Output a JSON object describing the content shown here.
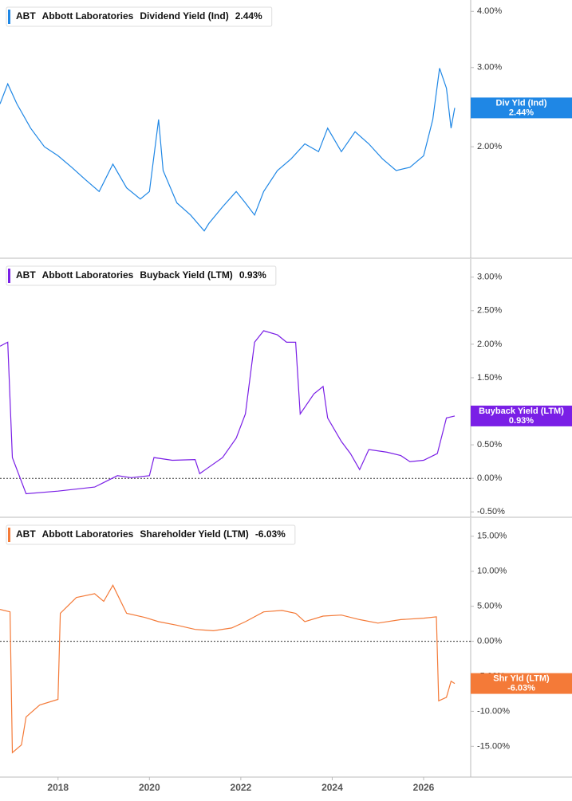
{
  "chart_data": [
    {
      "type": "line",
      "log": true,
      "legend": {
        "ticker": "ABT",
        "company": "Abbott Laboratories",
        "value": "2.44%"
      },
      "badge": {
        "label": "Div Yld (Ind)",
        "value": "2.44%"
      },
      "x": [
        2016.73,
        2016.9,
        2017.1,
        2017.4,
        2017.7,
        2018.0,
        2018.3,
        2018.6,
        2018.9,
        2019.2,
        2019.5,
        2019.8,
        2020.0,
        2020.2,
        2020.3,
        2020.6,
        2020.9,
        2021.2,
        2021.3,
        2021.6,
        2021.9,
        2022.1,
        2022.3,
        2022.5,
        2022.8,
        2023.1,
        2023.4,
        2023.7,
        2023.9,
        2024.2,
        2024.5,
        2024.8,
        2025.1,
        2025.4,
        2025.7,
        2026.0,
        2026.2,
        2026.35,
        2026.5,
        2026.6,
        2026.68
      ],
      "series": [
        {
          "name": "Dividend Yield (Ind)",
          "color": "#1f87e5",
          "values": [
            2.49,
            2.76,
            2.49,
            2.2,
            2.0,
            1.91,
            1.8,
            1.69,
            1.59,
            1.83,
            1.62,
            1.53,
            1.59,
            2.3,
            1.77,
            1.5,
            1.41,
            1.3,
            1.35,
            1.47,
            1.59,
            1.5,
            1.41,
            1.59,
            1.77,
            1.88,
            2.03,
            1.95,
            2.2,
            1.95,
            2.16,
            2.03,
            1.88,
            1.77,
            1.8,
            1.91,
            2.3,
            2.99,
            2.7,
            2.2,
            2.44
          ]
        }
      ],
      "xlim": [
        2016.73,
        2027.03
      ],
      "ylim": [
        1.13,
        4.24
      ],
      "yticks": [
        {
          "value": 2,
          "label": "2.00%"
        },
        {
          "value": 3,
          "label": "3.00%"
        },
        {
          "value": 4,
          "label": "4.00%"
        }
      ]
    },
    {
      "type": "line",
      "log": false,
      "zero_line": true,
      "legend": {
        "ticker": "ABT",
        "company": "Abbott Laboratories",
        "value": "0.93%"
      },
      "badge": {
        "label": "Buyback Yield (LTM)",
        "value": "0.93%"
      },
      "x": [
        2016.73,
        2016.9,
        2017.0,
        2017.3,
        2018.0,
        2018.8,
        2019.3,
        2019.6,
        2020.0,
        2020.1,
        2020.5,
        2021.0,
        2021.1,
        2021.6,
        2021.9,
        2022.1,
        2022.3,
        2022.5,
        2022.8,
        2023.0,
        2023.2,
        2023.3,
        2023.6,
        2023.8,
        2023.9,
        2024.2,
        2024.4,
        2024.6,
        2024.8,
        2025.2,
        2025.5,
        2025.7,
        2026.0,
        2026.3,
        2026.5,
        2026.68
      ],
      "series": [
        {
          "name": "Buyback Yield (LTM)",
          "color": "#7a1fe6",
          "values": [
            1.97,
            2.03,
            0.31,
            -0.23,
            -0.19,
            -0.13,
            0.04,
            0.01,
            0.04,
            0.31,
            0.27,
            0.28,
            0.07,
            0.31,
            0.6,
            0.96,
            2.03,
            2.2,
            2.14,
            2.03,
            2.03,
            0.96,
            1.26,
            1.37,
            0.9,
            0.55,
            0.37,
            0.13,
            0.43,
            0.39,
            0.34,
            0.25,
            0.27,
            0.37,
            0.9,
            0.93
          ]
        }
      ],
      "xlim": [
        2016.73,
        2027.03
      ],
      "ylim": [
        -0.58,
        3.27
      ],
      "yticks": [
        {
          "value": -0.5,
          "label": "-0.50%"
        },
        {
          "value": 0,
          "label": "0.00%"
        },
        {
          "value": 0.5,
          "label": "0.50%"
        },
        {
          "value": 1,
          "label": "1.00%"
        },
        {
          "value": 1.5,
          "label": "1.50%"
        },
        {
          "value": 2,
          "label": "2.00%"
        },
        {
          "value": 2.5,
          "label": "2.50%"
        },
        {
          "value": 3,
          "label": "3.00%"
        }
      ]
    },
    {
      "type": "line",
      "log": false,
      "zero_line": true,
      "legend": {
        "ticker": "ABT",
        "company": "Abbott Laboratories",
        "value": "-6.03%"
      },
      "badge": {
        "label": "Shr Yld (LTM)",
        "value": "-6.03%"
      },
      "x": [
        2016.73,
        2016.95,
        2017.0,
        2017.2,
        2017.3,
        2017.6,
        2018.0,
        2018.05,
        2018.4,
        2018.8,
        2019.0,
        2019.2,
        2019.5,
        2019.9,
        2020.2,
        2020.6,
        2021.0,
        2021.4,
        2021.8,
        2022.1,
        2022.5,
        2022.9,
        2023.2,
        2023.4,
        2023.8,
        2024.2,
        2024.6,
        2025.0,
        2025.5,
        2026.0,
        2026.28,
        2026.33,
        2026.5,
        2026.6,
        2026.68
      ],
      "series": [
        {
          "name": "Shareholder Yield (LTM)",
          "color": "#f47a38",
          "values": [
            4.55,
            4.2,
            -15.9,
            -14.8,
            -10.8,
            -9.1,
            -8.3,
            4.0,
            6.25,
            6.8,
            5.7,
            8.0,
            4.0,
            3.4,
            2.8,
            2.3,
            1.7,
            1.5,
            1.9,
            2.8,
            4.2,
            4.4,
            4.0,
            2.8,
            3.6,
            3.75,
            3.1,
            2.6,
            3.1,
            3.3,
            3.5,
            -8.5,
            -8.0,
            -5.7,
            -6.03
          ]
        }
      ],
      "xlim": [
        2016.73,
        2027.03
      ],
      "ylim": [
        -19.4,
        17.6
      ],
      "yticks": [
        {
          "value": -15,
          "label": "-15.00%"
        },
        {
          "value": -10,
          "label": "-10.00%"
        },
        {
          "value": -5,
          "label": "-5.00%"
        },
        {
          "value": 0,
          "label": "0.00%"
        },
        {
          "value": 5,
          "label": "5.00%"
        },
        {
          "value": 10,
          "label": "10.00%"
        },
        {
          "value": 15,
          "label": "15.00%"
        }
      ],
      "xticks": [
        2018,
        2020,
        2022,
        2024,
        2026
      ]
    }
  ]
}
